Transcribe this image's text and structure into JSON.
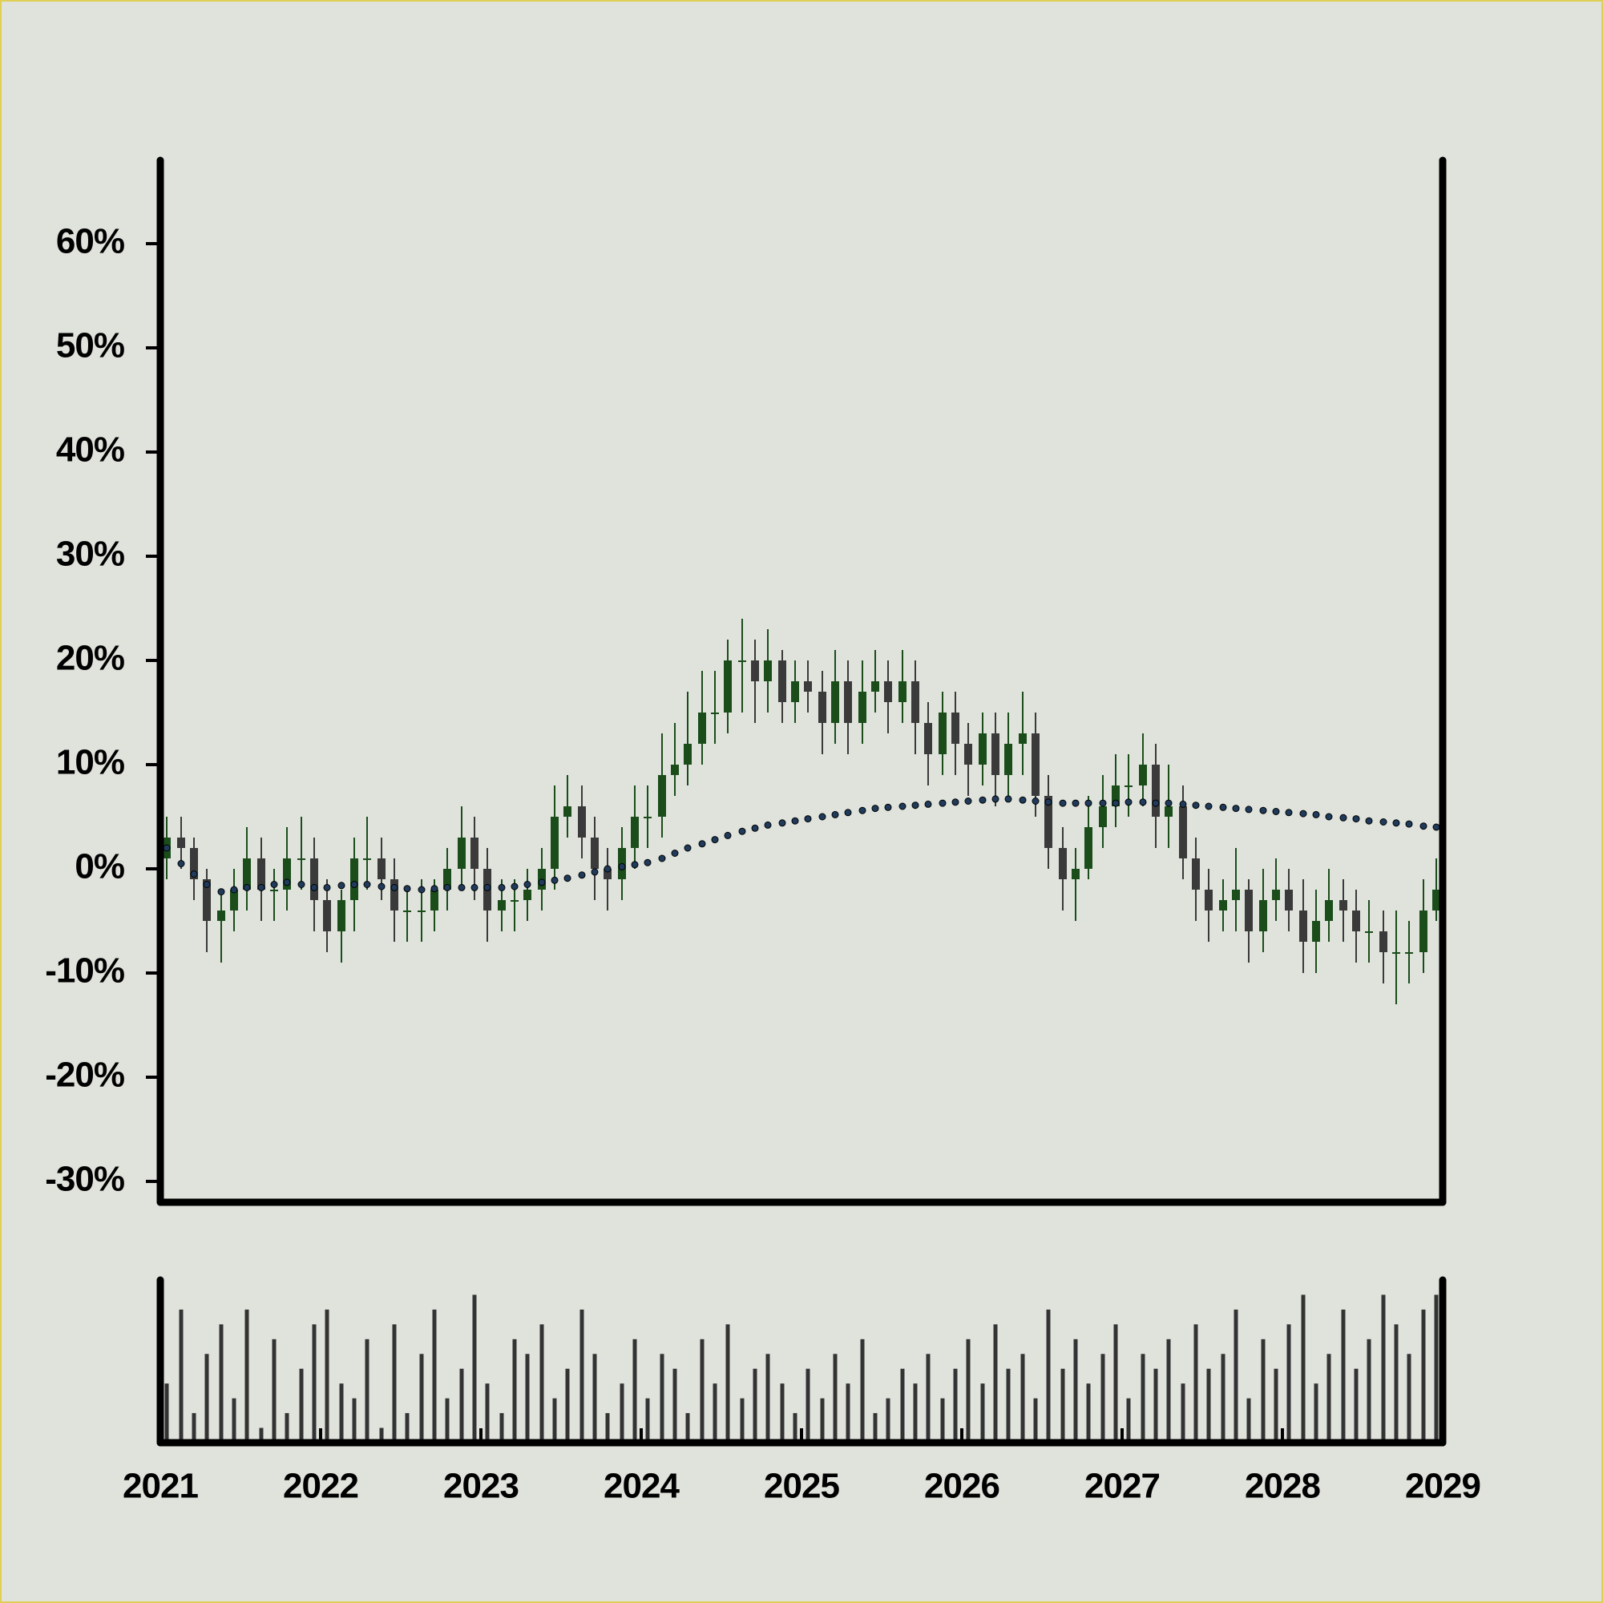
{
  "chart_data": {
    "type": "candlestick",
    "x": [
      2021.04,
      2021.13,
      2021.21,
      2021.29,
      2021.38,
      2021.46,
      2021.54,
      2021.63,
      2021.71,
      2021.79,
      2021.88,
      2021.96,
      2022.04,
      2022.13,
      2022.21,
      2022.29,
      2022.38,
      2022.46,
      2022.54,
      2022.63,
      2022.71,
      2022.79,
      2022.88,
      2022.96,
      2023.04,
      2023.13,
      2023.21,
      2023.29,
      2023.38,
      2023.46,
      2023.54,
      2023.63,
      2023.71,
      2023.79,
      2023.88,
      2023.96,
      2024.04,
      2024.13,
      2024.21,
      2024.29,
      2024.38,
      2024.46,
      2024.54,
      2024.63,
      2024.71,
      2024.79,
      2024.88,
      2024.96,
      2025.04,
      2025.13,
      2025.21,
      2025.29,
      2025.38,
      2025.46,
      2025.54,
      2025.63,
      2025.71,
      2025.79,
      2025.88,
      2025.96,
      2026.04,
      2026.13,
      2026.21,
      2026.29,
      2026.38,
      2026.46,
      2026.54,
      2026.63,
      2026.71,
      2026.79,
      2026.88,
      2026.96,
      2027.04,
      2027.13,
      2027.21,
      2027.29,
      2027.38,
      2027.46,
      2027.54,
      2027.63,
      2027.71,
      2027.79,
      2027.88,
      2027.96,
      2028.04,
      2028.13,
      2028.21,
      2028.29,
      2028.38,
      2028.46,
      2028.54,
      2028.63,
      2028.71,
      2028.79,
      2028.88,
      2028.96
    ],
    "open": [
      1,
      3,
      2,
      -1,
      -5,
      -4,
      -2,
      1,
      -2,
      -2,
      1,
      1,
      -3,
      -6,
      -3,
      1,
      1,
      -1,
      -4,
      -4,
      -4,
      -2,
      0,
      3,
      0,
      -4,
      -3,
      -3,
      -2,
      0,
      5,
      6,
      3,
      0,
      -1,
      2,
      5,
      5,
      9,
      10,
      12,
      15,
      15,
      20,
      20,
      18,
      20,
      16,
      18,
      17,
      14,
      18,
      14,
      17,
      18,
      16,
      18,
      14,
      11,
      15,
      12,
      10,
      13,
      9,
      12,
      13,
      7,
      2,
      -1,
      0,
      4,
      6,
      8,
      8,
      10,
      5,
      6,
      1,
      -2,
      -4,
      -3,
      -2,
      -6,
      -3,
      -2,
      -4,
      -7,
      -5,
      -3,
      -4,
      -6,
      -6,
      -8,
      -8,
      -8,
      -4
    ],
    "high": [
      5,
      5,
      3,
      0,
      -2,
      0,
      4,
      3,
      0,
      4,
      5,
      3,
      -1,
      -2,
      3,
      5,
      3,
      1,
      -2,
      -1,
      -1,
      2,
      6,
      5,
      2,
      -1,
      -1,
      0,
      2,
      8,
      9,
      8,
      5,
      2,
      4,
      8,
      8,
      13,
      14,
      17,
      19,
      19,
      22,
      24,
      22,
      23,
      21,
      20,
      20,
      19,
      21,
      20,
      20,
      21,
      20,
      21,
      20,
      16,
      17,
      17,
      14,
      15,
      15,
      15,
      17,
      15,
      9,
      4,
      2,
      7,
      9,
      11,
      11,
      13,
      12,
      10,
      8,
      3,
      0,
      -1,
      2,
      -1,
      0,
      1,
      0,
      -1,
      -2,
      0,
      -1,
      -2,
      -3,
      -4,
      -4,
      -5,
      -1,
      1
    ],
    "low": [
      -1,
      0,
      -3,
      -8,
      -9,
      -6,
      -4,
      -5,
      -5,
      -4,
      -2,
      -6,
      -8,
      -9,
      -6,
      -2,
      -3,
      -7,
      -7,
      -7,
      -6,
      -4,
      -2,
      -3,
      -7,
      -6,
      -6,
      -5,
      -4,
      -2,
      3,
      1,
      -3,
      -4,
      -3,
      0,
      2,
      3,
      7,
      8,
      10,
      12,
      13,
      15,
      14,
      15,
      14,
      14,
      15,
      11,
      12,
      11,
      12,
      15,
      13,
      14,
      11,
      8,
      9,
      9,
      7,
      8,
      6,
      7,
      9,
      5,
      0,
      -4,
      -5,
      -1,
      2,
      4,
      5,
      6,
      2,
      2,
      -1,
      -5,
      -7,
      -6,
      -6,
      -9,
      -8,
      -5,
      -6,
      -10,
      -10,
      -7,
      -7,
      -9,
      -9,
      -11,
      -13,
      -11,
      -10,
      -5
    ],
    "close": [
      3,
      2,
      -1,
      -5,
      -4,
      -2,
      1,
      -2,
      -2,
      1,
      1,
      -3,
      -6,
      -3,
      1,
      1,
      -1,
      -4,
      -4,
      -4,
      -2,
      0,
      3,
      0,
      -4,
      -3,
      -3,
      -2,
      0,
      5,
      6,
      3,
      0,
      -1,
      2,
      5,
      5,
      9,
      10,
      12,
      15,
      15,
      20,
      20,
      18,
      20,
      16,
      18,
      17,
      14,
      18,
      14,
      17,
      18,
      16,
      18,
      14,
      11,
      15,
      12,
      10,
      13,
      9,
      12,
      13,
      7,
      2,
      -1,
      0,
      4,
      6,
      8,
      8,
      10,
      5,
      6,
      1,
      -2,
      -4,
      -3,
      -2,
      -6,
      -3,
      -2,
      -4,
      -7,
      -5,
      -3,
      -4,
      -6,
      -6,
      -8,
      -8,
      -8,
      -4,
      -2
    ],
    "ma": [
      2,
      0.5,
      -0.5,
      -1.5,
      -2.2,
      -2,
      -1.8,
      -1.8,
      -1.5,
      -1.3,
      -1.5,
      -1.8,
      -1.8,
      -1.6,
      -1.5,
      -1.5,
      -1.7,
      -1.8,
      -1.9,
      -2,
      -1.9,
      -1.8,
      -1.8,
      -1.8,
      -1.8,
      -1.8,
      -1.7,
      -1.5,
      -1.3,
      -1.1,
      -0.9,
      -0.6,
      -0.3,
      0,
      0.2,
      0.4,
      0.6,
      1,
      1.5,
      2,
      2.4,
      2.8,
      3.2,
      3.6,
      3.9,
      4.2,
      4.4,
      4.6,
      4.8,
      5,
      5.2,
      5.4,
      5.6,
      5.8,
      5.9,
      6,
      6.1,
      6.2,
      6.3,
      6.4,
      6.5,
      6.6,
      6.7,
      6.7,
      6.6,
      6.5,
      6.4,
      6.3,
      6.3,
      6.3,
      6.3,
      6.3,
      6.4,
      6.4,
      6.3,
      6.3,
      6.2,
      6.1,
      6,
      5.9,
      5.8,
      5.7,
      5.6,
      5.5,
      5.4,
      5.3,
      5.2,
      5,
      4.9,
      4.8,
      4.6,
      4.5,
      4.4,
      4.3,
      4.1,
      4
    ],
    "volume": [
      4,
      9,
      2,
      6,
      8,
      3,
      9,
      1,
      7,
      2,
      5,
      8,
      9,
      4,
      3,
      7,
      1,
      8,
      2,
      6,
      9,
      3,
      5,
      10,
      4,
      2,
      7,
      6,
      8,
      3,
      5,
      9,
      6,
      2,
      4,
      7,
      3,
      6,
      5,
      2,
      7,
      4,
      8,
      3,
      5,
      6,
      4,
      2,
      5,
      3,
      6,
      4,
      7,
      2,
      3,
      5,
      4,
      6,
      3,
      5,
      7,
      4,
      8,
      5,
      6,
      3,
      9,
      5,
      7,
      4,
      6,
      8,
      3,
      6,
      5,
      7,
      4,
      8,
      5,
      6,
      9,
      3,
      7,
      5,
      8,
      10,
      4,
      6,
      9,
      5,
      7,
      10,
      8,
      6,
      9,
      10
    ],
    "up_color": "#1b4d1b",
    "down_color": "#3a3a3a",
    "ma_color": "#1f3a5a",
    "volume_color": "#333333",
    "xlim": [
      2021,
      2029
    ],
    "xticks": [
      2021,
      2022,
      2023,
      2024,
      2025,
      2026,
      2027,
      2028,
      2029
    ],
    "ylim": [
      -32,
      68
    ],
    "yticks": [
      {
        "value": -30,
        "label": "-30%"
      },
      {
        "value": -20,
        "label": "-20%"
      },
      {
        "value": -10,
        "label": "-10%"
      },
      {
        "value": 0,
        "label": "0%"
      },
      {
        "value": 10,
        "label": "10%"
      },
      {
        "value": 20,
        "label": "20%"
      },
      {
        "value": 30,
        "label": "30%"
      },
      {
        "value": 40,
        "label": "40%"
      },
      {
        "value": 50,
        "label": "50%"
      },
      {
        "value": 60,
        "label": "60%"
      }
    ],
    "volume_ylim": [
      0,
      11
    ],
    "grid": false
  }
}
